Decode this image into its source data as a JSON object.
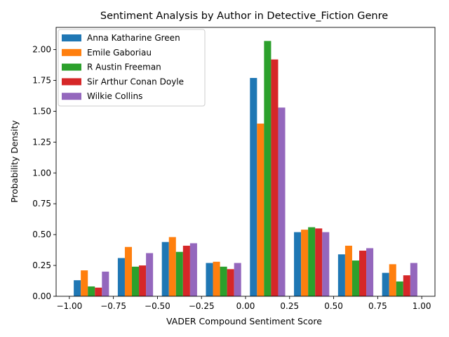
{
  "chart_data": {
    "type": "bar",
    "title": "Sentiment Analysis by Author in Detective_Fiction Genre",
    "xlabel": "VADER Compound Sentiment Score",
    "ylabel": "Probability Density",
    "xlim": [
      -1.075,
      1.075
    ],
    "ylim": [
      0,
      2.18
    ],
    "xticks": [
      "−1.00",
      "−0.75",
      "−0.50",
      "−0.25",
      "0.00",
      "0.25",
      "0.50",
      "0.75",
      "1.00"
    ],
    "xtick_values": [
      -1.0,
      -0.75,
      -0.5,
      -0.25,
      0.0,
      0.25,
      0.5,
      0.75,
      1.0
    ],
    "yticks": [
      "0.00",
      "0.25",
      "0.50",
      "0.75",
      "1.00",
      "1.25",
      "1.50",
      "1.75",
      "2.00"
    ],
    "ytick_values": [
      0,
      0.25,
      0.5,
      0.75,
      1.0,
      1.25,
      1.5,
      1.75,
      2.0
    ],
    "bin_edges": [
      -1.0,
      -0.75,
      -0.5,
      -0.25,
      0.0,
      0.25,
      0.5,
      0.75,
      1.0
    ],
    "legend_position": "top-left",
    "grid": false,
    "series": [
      {
        "name": "Anna Katharine Green",
        "color": "#1f77b4",
        "values": [
          0.13,
          0.31,
          0.44,
          0.27,
          1.77,
          0.52,
          0.34,
          0.19
        ]
      },
      {
        "name": "Emile Gaboriau",
        "color": "#ff7f0e",
        "values": [
          0.21,
          0.4,
          0.48,
          0.28,
          1.4,
          0.54,
          0.41,
          0.26
        ]
      },
      {
        "name": "R Austin Freeman",
        "color": "#2ca02c",
        "values": [
          0.08,
          0.24,
          0.36,
          0.24,
          2.07,
          0.56,
          0.29,
          0.12
        ]
      },
      {
        "name": "Sir Arthur Conan Doyle",
        "color": "#d62728",
        "values": [
          0.07,
          0.25,
          0.41,
          0.22,
          1.92,
          0.55,
          0.37,
          0.17
        ]
      },
      {
        "name": "Wilkie Collins",
        "color": "#9467bd",
        "values": [
          0.2,
          0.35,
          0.43,
          0.27,
          1.53,
          0.52,
          0.39,
          0.27
        ]
      }
    ]
  }
}
